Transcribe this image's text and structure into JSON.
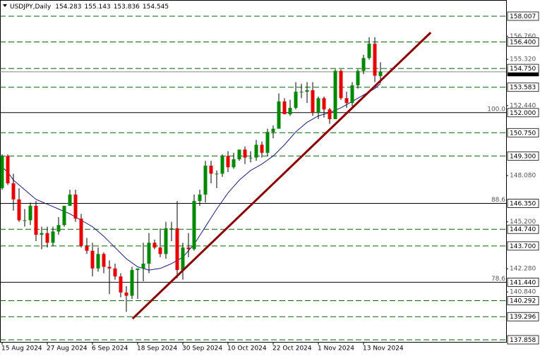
{
  "chart_data": {
    "type": "candlestick",
    "title": "USDJPY,Daily",
    "up_color": "#008a00",
    "down_color": "#e80000",
    "wick_color": "#000000",
    "categories": [
      "15 Aug 2024",
      null,
      null,
      null,
      null,
      null,
      null,
      null,
      "27 Aug 2024",
      null,
      null,
      null,
      null,
      null,
      null,
      null,
      "6 Sep 2024",
      null,
      null,
      null,
      null,
      null,
      null,
      null,
      "18 Sep 2024",
      null,
      null,
      null,
      null,
      null,
      null,
      null,
      "30 Sep 2024",
      null,
      null,
      null,
      null,
      null,
      null,
      null,
      "10 Oct 2024",
      null,
      null,
      null,
      null,
      null,
      null,
      null,
      "22 Oct 2024",
      null,
      null,
      null,
      null,
      null,
      null,
      null,
      "1 Nov 2024",
      null,
      null,
      null,
      null,
      null,
      null,
      null,
      "13 Nov 2024",
      null,
      null,
      null
    ],
    "open": [
      147.3,
      149.3,
      147.6,
      146.6,
      145.3,
      145.3,
      146.2,
      144.4,
      144.5,
      143.9,
      144.6,
      145.0,
      146.2,
      146.9,
      145.4,
      143.7,
      143.4,
      142.3,
      143.2,
      142.4,
      142.3,
      141.8,
      140.8,
      140.6,
      142.2,
      142.3,
      142.6,
      143.9,
      143.6,
      143.2,
      144.8,
      144.8,
      142.2,
      143.6,
      143.5,
      146.5,
      146.9,
      148.7,
      148.2,
      148.2,
      149.3,
      148.6,
      149.1,
      149.7,
      149.2,
      149.2,
      150.0,
      149.5,
      150.8,
      151.0,
      152.7,
      151.9,
      152.3,
      153.3,
      153.3,
      153.4,
      152.0,
      152.9,
      152.2,
      151.6,
      154.6,
      152.9,
      152.6,
      153.7,
      154.6,
      155.4,
      156.3,
      154.283
    ],
    "high": [
      149.4,
      149.4,
      148.2,
      147.3,
      146.0,
      146.4,
      146.5,
      144.9,
      144.9,
      144.9,
      145.5,
      146.2,
      147.2,
      147.2,
      145.7,
      144.2,
      143.9,
      143.6,
      143.3,
      142.8,
      142.6,
      142.0,
      141.2,
      142.4,
      142.3,
      143.9,
      144.5,
      144.1,
      144.8,
      145.2,
      145.2,
      146.5,
      143.9,
      144.5,
      146.9,
      147.2,
      149.0,
      149.0,
      148.4,
      149.4,
      149.6,
      149.5,
      149.7,
      149.9,
      149.6,
      150.3,
      150.2,
      151.0,
      151.2,
      153.2,
      152.9,
      152.8,
      153.9,
      153.8,
      153.9,
      153.9,
      153.0,
      153.0,
      152.3,
      154.7,
      154.7,
      153.3,
      153.9,
      154.7,
      155.6,
      156.7,
      156.7,
      155.143
    ],
    "low": [
      147.2,
      147.5,
      145.9,
      145.2,
      144.9,
      145.0,
      144.0,
      143.5,
      143.6,
      143.7,
      144.4,
      144.9,
      146.2,
      145.2,
      143.6,
      143.2,
      141.8,
      142.1,
      142.0,
      140.7,
      141.6,
      140.5,
      139.6,
      140.4,
      140.4,
      141.5,
      142.0,
      143.5,
      143.0,
      142.9,
      144.0,
      141.7,
      141.6,
      143.0,
      143.4,
      146.2,
      146.4,
      147.6,
      147.3,
      148.0,
      148.3,
      148.5,
      149.0,
      148.8,
      148.9,
      149.0,
      149.2,
      149.3,
      150.4,
      151.0,
      151.9,
      151.8,
      152.2,
      152.9,
      152.6,
      151.8,
      151.6,
      151.7,
      151.3,
      151.6,
      152.8,
      152.3,
      152.4,
      153.5,
      154.4,
      155.3,
      153.9,
      153.836
    ],
    "close": [
      149.3,
      147.6,
      146.6,
      145.3,
      145.3,
      146.2,
      144.4,
      144.5,
      143.9,
      144.6,
      145.0,
      146.2,
      146.9,
      145.4,
      143.7,
      143.4,
      142.3,
      143.2,
      142.4,
      142.3,
      141.8,
      140.8,
      140.6,
      142.2,
      142.3,
      142.6,
      143.9,
      143.6,
      143.2,
      144.8,
      144.8,
      142.2,
      143.6,
      143.5,
      146.5,
      146.9,
      148.7,
      148.2,
      148.2,
      149.3,
      148.6,
      149.1,
      149.7,
      149.2,
      149.2,
      150.0,
      149.5,
      150.8,
      151.0,
      152.7,
      151.9,
      152.3,
      153.3,
      153.3,
      153.4,
      152.0,
      152.9,
      152.2,
      151.6,
      154.6,
      152.9,
      152.6,
      153.7,
      154.6,
      155.4,
      156.3,
      154.3,
      154.545
    ],
    "moving_average": {
      "color": "#1a1a80",
      "values": [
        148.6,
        148.3,
        147.8,
        147.5,
        147.2,
        146.9,
        146.6,
        146.45,
        146.3,
        146.15,
        146.0,
        145.85,
        145.7,
        145.5,
        145.3,
        145.1,
        144.9,
        144.6,
        144.3,
        143.95,
        143.6,
        143.25,
        142.9,
        142.65,
        142.4,
        142.3,
        142.2,
        142.25,
        142.3,
        142.45,
        142.6,
        142.8,
        143.0,
        143.4,
        143.8,
        144.35,
        144.9,
        145.45,
        146.0,
        146.5,
        147.0,
        147.4,
        147.8,
        148.1,
        148.4,
        148.6,
        148.8,
        149.05,
        149.3,
        149.65,
        150.0,
        150.4,
        150.8,
        151.1,
        151.4,
        151.6,
        151.8,
        151.9,
        152.0,
        152.15,
        152.3,
        152.5,
        152.7,
        152.9,
        153.1,
        153.3,
        153.5,
        153.8
      ]
    },
    "trendline": {
      "color": "#8b0000",
      "x": [
        23.1,
        75.9
      ],
      "values": [
        139.17,
        156.99
      ]
    },
    "ylim": [
      137.726,
      158.97
    ],
    "yticks": [
      {
        "value": 140.84,
        "label": "140.840"
      },
      {
        "value": 142.28,
        "label": "142.280"
      },
      {
        "value": 145.2,
        "label": "145.200"
      },
      {
        "value": 148.08,
        "label": "148.080"
      },
      {
        "value": 152.44,
        "label": "152.440"
      },
      {
        "value": 155.32,
        "label": "155.320"
      },
      {
        "value": 156.76,
        "label": "156.760"
      }
    ],
    "level_color": "#006400",
    "levels": [
      158.007,
      {
        "value": 156.4,
        "label": "156.400"
      },
      {
        "value": 154.75,
        "label": "154.750"
      },
      153.583,
      {
        "value": 150.75,
        "label": "150.750"
      },
      {
        "value": 149.3,
        "label": "149.300"
      },
      {
        "value": 144.74,
        "label": "144.740"
      },
      {
        "value": 143.7,
        "label": "143.700"
      },
      140.292,
      139.296,
      137.858
    ],
    "fib_levels": [
      {
        "value": 152,
        "label": "152.000",
        "fib": "100.0"
      },
      {
        "value": 146.35,
        "label": "146.350",
        "fib": "88.6"
      },
      {
        "value": 141.44,
        "label": "141.440",
        "fib": "78.6"
      }
    ]
  }
}
